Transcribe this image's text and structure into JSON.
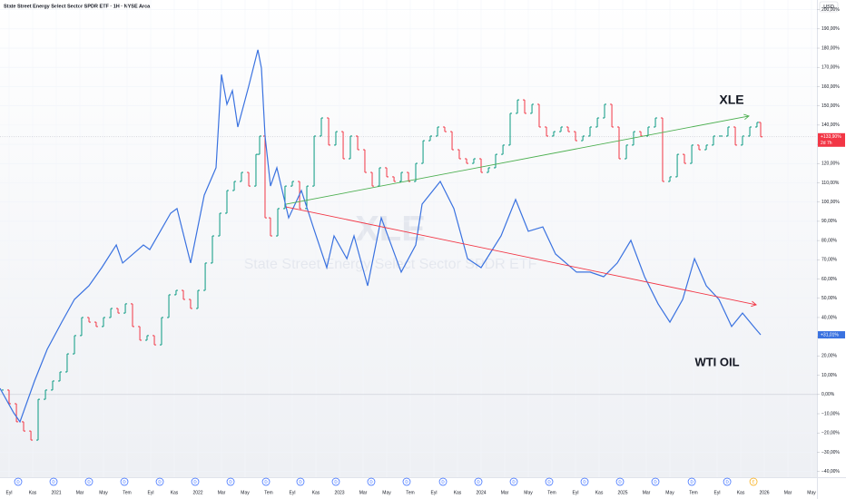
{
  "chart_data": {
    "type": "line",
    "title": "State Street Energy Select Sector SPDR ETF · 1H · NYSE Arca",
    "currency": "USD",
    "watermark": [
      "XLE",
      "State Street Energy Select Sector SPDR ETF"
    ],
    "xlim": [
      -0.77,
      68.46
    ],
    "ylim": [
      -43,
      205
    ],
    "grid": true,
    "zero_line": 0,
    "xticks": [
      {
        "value": 0,
        "label": "Eyl"
      },
      {
        "value": 2,
        "label": "Kas"
      },
      {
        "value": 4,
        "label": "2021"
      },
      {
        "value": 6,
        "label": "Mar"
      },
      {
        "value": 8,
        "label": "May"
      },
      {
        "value": 10,
        "label": "Tem"
      },
      {
        "value": 12,
        "label": "Eyl"
      },
      {
        "value": 14,
        "label": "Kas"
      },
      {
        "value": 16,
        "label": "2022"
      },
      {
        "value": 18,
        "label": "Mar"
      },
      {
        "value": 20,
        "label": "May"
      },
      {
        "value": 22,
        "label": "Tem"
      },
      {
        "value": 24,
        "label": "Eyl"
      },
      {
        "value": 26,
        "label": "Kas"
      },
      {
        "value": 28,
        "label": "2023"
      },
      {
        "value": 30,
        "label": "Mar"
      },
      {
        "value": 32,
        "label": "May"
      },
      {
        "value": 34,
        "label": "Tem"
      },
      {
        "value": 36,
        "label": "Eyl"
      },
      {
        "value": 38,
        "label": "Kas"
      },
      {
        "value": 40,
        "label": "2024"
      },
      {
        "value": 42,
        "label": "Mar"
      },
      {
        "value": 44,
        "label": "May"
      },
      {
        "value": 46,
        "label": "Tem"
      },
      {
        "value": 48,
        "label": "Eyl"
      },
      {
        "value": 50,
        "label": "Kas"
      },
      {
        "value": 52,
        "label": "2025"
      },
      {
        "value": 54,
        "label": "Mar"
      },
      {
        "value": 56,
        "label": "May"
      },
      {
        "value": 58,
        "label": "Tem"
      },
      {
        "value": 60,
        "label": "Eyl"
      },
      {
        "value": 62,
        "label": "Kas"
      },
      {
        "value": 64,
        "label": "2026"
      },
      {
        "value": 66,
        "label": "Mar"
      },
      {
        "value": 68,
        "label": "May"
      }
    ],
    "yticks": [
      {
        "value": 200,
        "label": "200,00%"
      },
      {
        "value": 190,
        "label": "190,00%"
      },
      {
        "value": 180,
        "label": "180,00%"
      },
      {
        "value": 170,
        "label": "170,00%"
      },
      {
        "value": 160,
        "label": "160,00%"
      },
      {
        "value": 150,
        "label": "150,00%"
      },
      {
        "value": 140,
        "label": "140,00%"
      },
      {
        "value": 130,
        "label": "130,00%"
      },
      {
        "value": 120,
        "label": "120,00%"
      },
      {
        "value": 110,
        "label": "110,00%"
      },
      {
        "value": 100,
        "label": "100,00%"
      },
      {
        "value": 90,
        "label": "90,00%"
      },
      {
        "value": 80,
        "label": "80,00%"
      },
      {
        "value": 70,
        "label": "70,00%"
      },
      {
        "value": 60,
        "label": "60,00%"
      },
      {
        "value": 50,
        "label": "50,00%"
      },
      {
        "value": 40,
        "label": "40,00%"
      },
      {
        "value": 30,
        "label": "30,00%"
      },
      {
        "value": 20,
        "label": "20,00%"
      },
      {
        "value": 10,
        "label": "10,00%"
      },
      {
        "value": 0,
        "label": "0,00%"
      },
      {
        "value": -10,
        "label": "−10,00%"
      },
      {
        "value": -20,
        "label": "−20,00%"
      },
      {
        "value": -30,
        "label": "−30,00%"
      },
      {
        "value": -40,
        "label": "−40,00%"
      }
    ],
    "series": [
      {
        "name": "XLE",
        "style": "ohlc",
        "up_color": "#089981",
        "down_color": "#f23645",
        "color": "#f23645",
        "last_label": "+133,90%",
        "countdown": "2d 7h",
        "x": [
          -0.62,
          0,
          0.62,
          1.23,
          1.85,
          2.46,
          3.08,
          3.69,
          4.31,
          4.92,
          5.54,
          6.15,
          6.77,
          7.38,
          8,
          8.62,
          9.23,
          9.85,
          10.46,
          11.08,
          11.69,
          12.31,
          12.92,
          13.54,
          14.15,
          14.77,
          15.38,
          16,
          16.62,
          17.23,
          17.85,
          18.46,
          19.08,
          19.69,
          20.31,
          20.92,
          21.23,
          21.69,
          22.15,
          22.77,
          23.38,
          24,
          24.62,
          25.23,
          25.85,
          26.46,
          27.08,
          27.69,
          28.31,
          28.92,
          29.54,
          30.15,
          30.77,
          31.38,
          32,
          32.62,
          33.23,
          33.85,
          34.46,
          35.08,
          35.69,
          36.31,
          36.92,
          37.54,
          38.15,
          38.77,
          39.38,
          40,
          40.62,
          41.23,
          41.85,
          42.46,
          43.08,
          43.69,
          44.31,
          44.92,
          45.54,
          46.15,
          46.77,
          47.38,
          48,
          48.62,
          49.23,
          49.85,
          50.46,
          51.08,
          51.69,
          52.31,
          52.92,
          53.54,
          54.15,
          54.77,
          55.38,
          56,
          56.62,
          57.23,
          57.85,
          58.46,
          59.08,
          59.69,
          60.31,
          60.92,
          61.54,
          62.15,
          62.77,
          63.38,
          63.69
        ],
        "values": [
          2.3,
          -4.8,
          -14.2,
          -19.0,
          -23.7,
          -2.5,
          2.3,
          7.0,
          11.7,
          21.1,
          30.6,
          40.0,
          37.6,
          35.3,
          40.0,
          44.7,
          42.3,
          47.1,
          35.3,
          28.2,
          30.6,
          25.8,
          40.0,
          51.8,
          54.1,
          49.4,
          44.7,
          54.1,
          68.3,
          82.4,
          94.2,
          106.0,
          110.7,
          115.4,
          108.3,
          124.8,
          134.3,
          91.8,
          82.4,
          96.6,
          108.3,
          110.7,
          96.6,
          108.3,
          134.3,
          143.7,
          129.6,
          136.6,
          122.5,
          134.3,
          127.2,
          115.4,
          108.3,
          117.8,
          113.1,
          110.7,
          115.4,
          110.7,
          120.1,
          131.9,
          134.3,
          139.0,
          136.6,
          127.2,
          122.5,
          120.1,
          122.5,
          115.4,
          117.8,
          124.8,
          129.6,
          146.1,
          153.1,
          146.1,
          150.8,
          139.0,
          134.3,
          136.6,
          139.0,
          136.6,
          131.9,
          134.3,
          139.0,
          143.7,
          150.8,
          139.0,
          122.5,
          129.6,
          136.6,
          134.3,
          139.0,
          143.7,
          110.7,
          113.1,
          124.8,
          120.1,
          129.6,
          127.2,
          129.6,
          134.3,
          134.3,
          139.0,
          129.6,
          134.3,
          139.0,
          141.4,
          133.9
        ]
      },
      {
        "name": "WTI OIL",
        "style": "line",
        "color": "#3a72e0",
        "last_label": "+31,01%",
        "x": [
          -0.77,
          0.38,
          0.92,
          2.15,
          3.23,
          4.46,
          5.54,
          6.77,
          7.85,
          9.08,
          9.62,
          11.38,
          11.92,
          13.69,
          14.23,
          15.38,
          16.54,
          17.54,
          18.0,
          18.46,
          18.92,
          19.38,
          20.31,
          21.08,
          21.38,
          21.69,
          22.15,
          22.69,
          23.69,
          24.77,
          25.77,
          26.92,
          27.54,
          28.62,
          29.23,
          30.38,
          31.54,
          33.23,
          34.46,
          35.0,
          36.54,
          37.69,
          38.85,
          40.0,
          41.69,
          42.92,
          44.0,
          45.23,
          46.31,
          48.08,
          49.23,
          50.38,
          51.54,
          52.69,
          53.85,
          55.0,
          56.0,
          57.08,
          58.08,
          59.08,
          60.15,
          61.23,
          62.15,
          63.23,
          63.69
        ],
        "values": [
          3.2,
          -9.5,
          -14.2,
          7.0,
          23.5,
          37.6,
          49.4,
          56.5,
          65.9,
          77.7,
          68.3,
          77.7,
          75.3,
          94.2,
          96.6,
          68.3,
          103.6,
          117.8,
          166.3,
          150.8,
          157.9,
          139.0,
          160.2,
          179.1,
          169.6,
          134.3,
          108.3,
          117.8,
          91.8,
          106.0,
          87.1,
          65.9,
          82.4,
          70.6,
          82.4,
          56.5,
          91.8,
          63.6,
          77.7,
          98.9,
          110.7,
          96.6,
          70.6,
          65.9,
          82.4,
          101.3,
          84.8,
          87.1,
          73.0,
          63.6,
          63.6,
          61.2,
          68.3,
          80.1,
          61.2,
          47.1,
          37.6,
          49.4,
          70.6,
          56.5,
          49.4,
          35.3,
          42.3,
          34.3,
          31.0
        ]
      }
    ],
    "trendlines": [
      {
        "color": "#4caf50",
        "x": [
          23.46,
          62.69
        ],
        "y": [
          98.9,
          144.7
        ]
      },
      {
        "color": "#f23645",
        "x": [
          23.46,
          63.31
        ],
        "y": [
          97.5,
          46.6
        ]
      }
    ],
    "dividends": {
      "label": "D",
      "x": [
        0.77,
        3.77,
        6.77,
        9.77,
        12.77,
        15.77,
        18.77,
        21.77,
        24.69,
        27.69,
        30.69,
        33.69,
        36.77,
        39.77,
        42.77,
        45.77,
        48.77,
        51.77,
        54.77,
        57.85,
        60.85
      ]
    },
    "earnings": {
      "label": "E",
      "x": 63.08
    }
  }
}
